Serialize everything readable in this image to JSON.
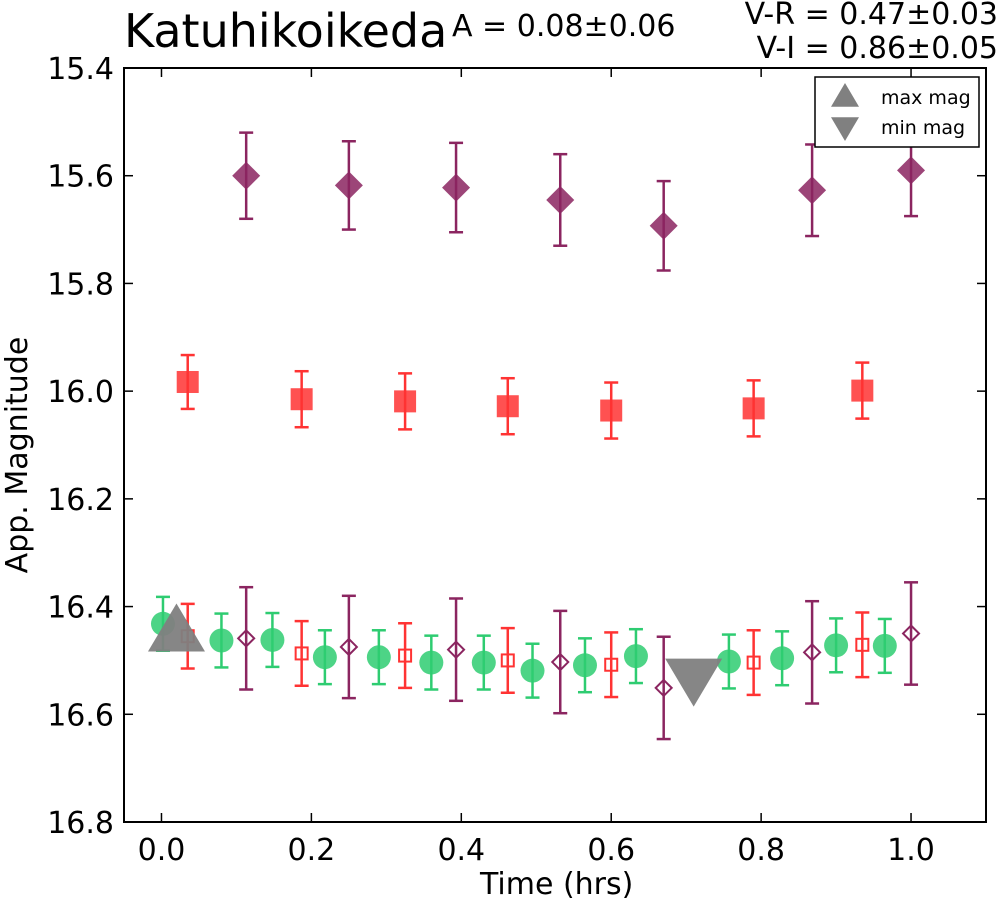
{
  "chart_data": {
    "type": "scatter",
    "title": "Katuhikoikeda",
    "annotations": {
      "amplitude": "A  = 0.08±0.06",
      "v_r": "V-R = 0.47±0.03",
      "v_i": "V-I  = 0.86±0.05"
    },
    "xlabel": "Time (hrs)",
    "ylabel": "App. Magnitude",
    "xlim": [
      -0.05,
      1.1
    ],
    "ylim": [
      16.8,
      15.4
    ],
    "y_inverted": true,
    "xticks": [
      "0.0",
      "0.2",
      "0.4",
      "0.6",
      "0.8",
      "1.0"
    ],
    "yticks": [
      "15.4",
      "15.6",
      "15.8",
      "16.0",
      "16.2",
      "16.4",
      "16.6",
      "16.8"
    ],
    "grid": false,
    "legend": {
      "placement": "top-right",
      "entries": [
        {
          "label": "max mag",
          "marker": "triangle-up",
          "color": "#808080"
        },
        {
          "label": "min mag",
          "marker": "triangle-down",
          "color": "#808080"
        }
      ]
    },
    "series": [
      {
        "marker": "diamond",
        "filled": true,
        "color": "#8B2560",
        "points": [
          {
            "x": 0.113,
            "y": 15.6,
            "err": 0.08
          },
          {
            "x": 0.25,
            "y": 15.618,
            "err": 0.082
          },
          {
            "x": 0.393,
            "y": 15.622,
            "err": 0.083
          },
          {
            "x": 0.532,
            "y": 15.645,
            "err": 0.085
          },
          {
            "x": 0.67,
            "y": 15.693,
            "err": 0.083
          },
          {
            "x": 0.868,
            "y": 15.627,
            "err": 0.085
          },
          {
            "x": 1.0,
            "y": 15.59,
            "err": 0.085
          }
        ]
      },
      {
        "marker": "square",
        "filled": true,
        "color": "#FF3333",
        "points": [
          {
            "x": 0.035,
            "y": 15.983,
            "err": 0.05
          },
          {
            "x": 0.187,
            "y": 16.015,
            "err": 0.052
          },
          {
            "x": 0.325,
            "y": 16.019,
            "err": 0.052
          },
          {
            "x": 0.462,
            "y": 16.028,
            "err": 0.052
          },
          {
            "x": 0.6,
            "y": 16.036,
            "err": 0.052
          },
          {
            "x": 0.79,
            "y": 16.032,
            "err": 0.052
          },
          {
            "x": 0.935,
            "y": 15.999,
            "err": 0.052
          }
        ]
      },
      {
        "marker": "circle",
        "filled": true,
        "color": "#2ECC71",
        "points": [
          {
            "x": 0.002,
            "y": 16.432,
            "err": 0.05
          },
          {
            "x": 0.08,
            "y": 16.463,
            "err": 0.05
          },
          {
            "x": 0.148,
            "y": 16.462,
            "err": 0.05
          },
          {
            "x": 0.218,
            "y": 16.494,
            "err": 0.05
          },
          {
            "x": 0.29,
            "y": 16.494,
            "err": 0.05
          },
          {
            "x": 0.36,
            "y": 16.504,
            "err": 0.05
          },
          {
            "x": 0.43,
            "y": 16.504,
            "err": 0.05
          },
          {
            "x": 0.495,
            "y": 16.519,
            "err": 0.05
          },
          {
            "x": 0.565,
            "y": 16.509,
            "err": 0.05
          },
          {
            "x": 0.633,
            "y": 16.492,
            "err": 0.05
          },
          {
            "x": 0.757,
            "y": 16.502,
            "err": 0.05
          },
          {
            "x": 0.828,
            "y": 16.496,
            "err": 0.05
          },
          {
            "x": 0.9,
            "y": 16.472,
            "err": 0.05
          },
          {
            "x": 0.965,
            "y": 16.473,
            "err": 0.05
          }
        ]
      },
      {
        "marker": "square",
        "filled": false,
        "color": "#FF3333",
        "points": [
          {
            "x": 0.035,
            "y": 16.455,
            "err": 0.06
          },
          {
            "x": 0.187,
            "y": 16.487,
            "err": 0.06
          },
          {
            "x": 0.325,
            "y": 16.491,
            "err": 0.06
          },
          {
            "x": 0.462,
            "y": 16.5,
            "err": 0.06
          },
          {
            "x": 0.6,
            "y": 16.508,
            "err": 0.06
          },
          {
            "x": 0.79,
            "y": 16.504,
            "err": 0.06
          },
          {
            "x": 0.935,
            "y": 16.471,
            "err": 0.06
          }
        ]
      },
      {
        "marker": "diamond",
        "filled": false,
        "color": "#8B2560",
        "points": [
          {
            "x": 0.113,
            "y": 16.459,
            "err": 0.095
          },
          {
            "x": 0.25,
            "y": 16.475,
            "err": 0.095
          },
          {
            "x": 0.393,
            "y": 16.48,
            "err": 0.095
          },
          {
            "x": 0.532,
            "y": 16.503,
            "err": 0.095
          },
          {
            "x": 0.67,
            "y": 16.551,
            "err": 0.095
          },
          {
            "x": 0.868,
            "y": 16.485,
            "err": 0.095
          },
          {
            "x": 1.0,
            "y": 16.45,
            "err": 0.095
          }
        ]
      }
    ],
    "extrema": [
      {
        "label": "max mag",
        "marker": "triangle-up",
        "color": "#808080",
        "x": 0.02,
        "y": 16.45
      },
      {
        "label": "min mag",
        "marker": "triangle-down",
        "color": "#808080",
        "x": 0.71,
        "y": 16.53
      }
    ]
  }
}
